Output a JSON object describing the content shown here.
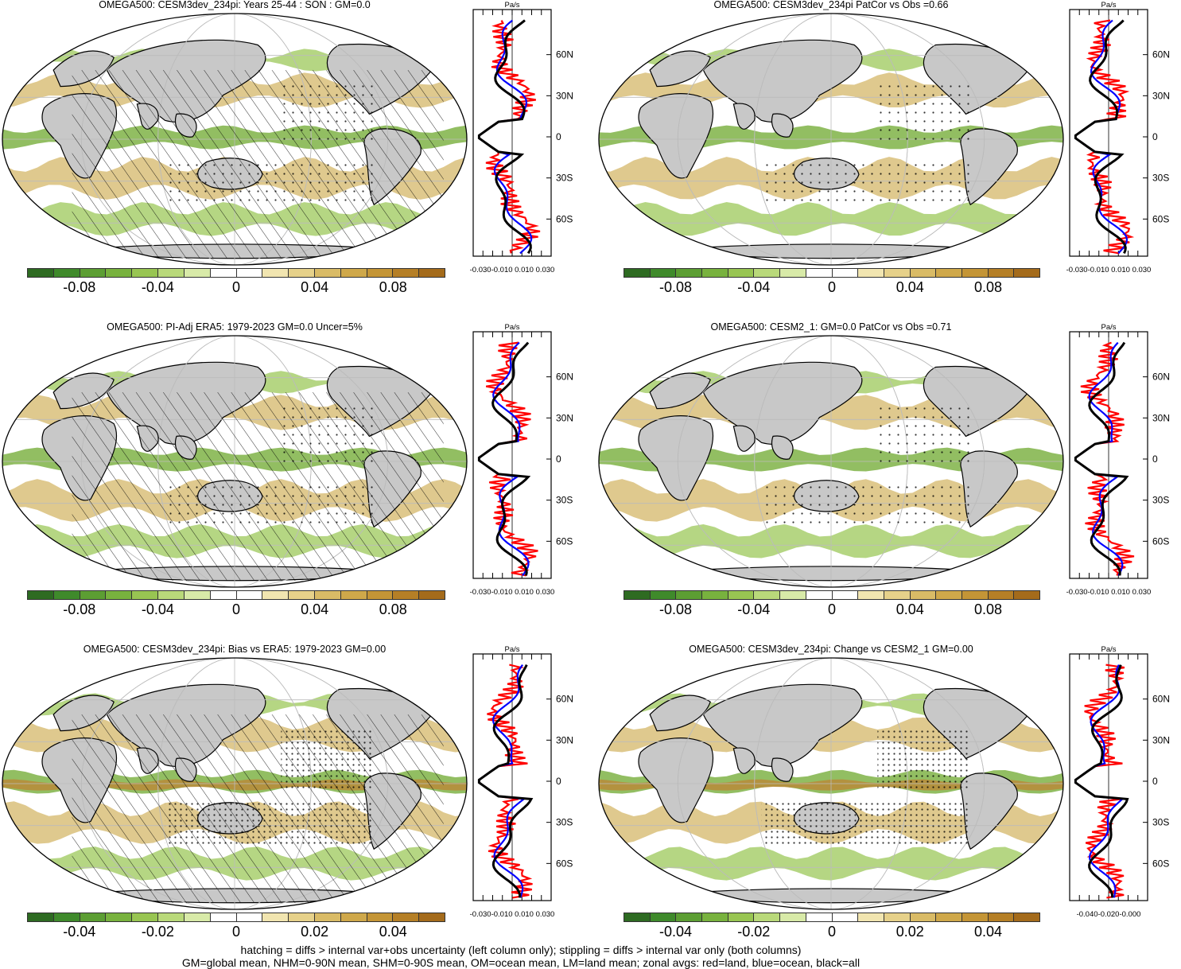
{
  "panels": [
    {
      "title": "OMEGA500: CESM3dev_234pi: Years 25-44 : SON : GM=0.0",
      "hatch": true,
      "stipple": "sparse"
    },
    {
      "title": "OMEGA500: CESM3dev_234pi PatCor vs Obs =0.66",
      "hatch": false,
      "stipple": "sparse"
    },
    {
      "title": "OMEGA500: PI-Adj ERA5: 1979-2023 GM=0.0 Uncer=5%",
      "hatch": true,
      "stipple": "sparse"
    },
    {
      "title": "OMEGA500: CESM2_1: GM=0.0 PatCor vs Obs =0.71",
      "hatch": false,
      "stipple": "sparse"
    },
    {
      "title": "OMEGA500: CESM3dev_234pi: Bias vs ERA5: 1979-2023  GM=0.00",
      "hatch": true,
      "stipple": "dense"
    },
    {
      "title": "OMEGA500: CESM3dev_234pi: Change vs CESM2_1 GM=0.00",
      "hatch": false,
      "stipple": "dense"
    }
  ],
  "zonal": {
    "unit": "Pa/s",
    "lat_labels": [
      "60N",
      "30N",
      "0",
      "30S",
      "60S"
    ],
    "xtick_labels_a": "-0.030-0.010 0.010 0.030",
    "xtick_labels_b": "-0.040-0.020-0.000",
    "series": [
      {
        "name": "land",
        "color": "#ff0000"
      },
      {
        "name": "ocean",
        "color": "#0000ff"
      },
      {
        "name": "all",
        "color": "#000000"
      }
    ]
  },
  "colorbars": {
    "colors": [
      "#2e6b22",
      "#3f8a2b",
      "#5c9e33",
      "#78b23e",
      "#98c552",
      "#b9d97a",
      "#d8eaa8",
      "#ffffff",
      "#ffffff",
      "#f1e5b0",
      "#e6d18a",
      "#d9bb66",
      "#cfa84a",
      "#c49536",
      "#b57f26",
      "#a46b1b"
    ],
    "rows": [
      {
        "labels": [
          "-0.08",
          "-0.04",
          "0",
          "0.04",
          "0.08"
        ]
      },
      {
        "labels": [
          "-0.08",
          "-0.04",
          "0",
          "0.04",
          "0.08"
        ]
      },
      {
        "labels": [
          "-0.04",
          "-0.02",
          "0",
          "0.02",
          "0.04"
        ]
      }
    ]
  },
  "colors": {
    "land": "#c8c8c8",
    "green": "#7fb346",
    "tan": "#d9bf7a",
    "brown": "#b98b3a"
  },
  "footer": {
    "line1": "hatching = diffs > internal var+obs uncertainty (left column only); stippling = diffs > internal var only (both columns)",
    "line2": "GM=global mean, NHM=0-90N mean, SHM=0-90S mean, OM=ocean mean, LM=land mean; zonal avgs: red=land, blue=ocean, black=all"
  }
}
